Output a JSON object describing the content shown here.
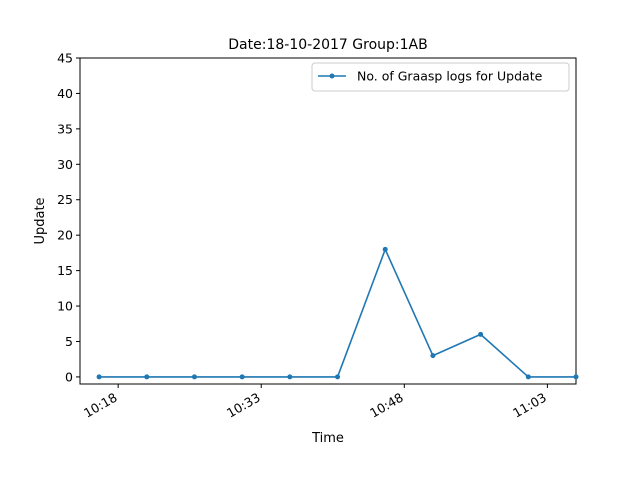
{
  "chart_data": {
    "type": "line",
    "title": "Date:18-10-2017  Group:1AB",
    "xlabel": "Time",
    "ylabel": "Update",
    "ylim": [
      -1,
      45
    ],
    "xlim": [
      "10:14",
      "11:06"
    ],
    "yticks": [
      0,
      5,
      10,
      15,
      20,
      25,
      30,
      35,
      40,
      45
    ],
    "xticks": [
      "10:18",
      "10:33",
      "10:48",
      "11:03"
    ],
    "grid": false,
    "legend_position": "top-right",
    "series": [
      {
        "name": "No. of Graasp logs for Update",
        "color": "#1f77b4",
        "marker": "dot",
        "x": [
          "10:16",
          "10:21",
          "10:26",
          "10:31",
          "10:36",
          "10:41",
          "10:46",
          "10:51",
          "10:56",
          "11:01",
          "11:06"
        ],
        "y": [
          0,
          0,
          0,
          0,
          0,
          0,
          18,
          3,
          6,
          0,
          0
        ]
      }
    ]
  }
}
